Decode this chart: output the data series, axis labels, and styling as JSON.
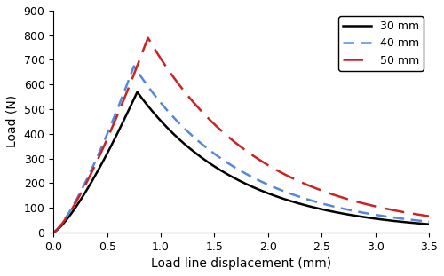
{
  "title": "",
  "xlabel": "Load line displacement (mm)",
  "ylabel": "Load (N)",
  "xlim": [
    0,
    3.5
  ],
  "ylim": [
    0,
    900
  ],
  "xticks": [
    0,
    0.5,
    1.0,
    1.5,
    2.0,
    2.5,
    3.0,
    3.5
  ],
  "yticks": [
    0,
    100,
    200,
    300,
    400,
    500,
    600,
    700,
    800,
    900
  ],
  "series": [
    {
      "label": "30 mm",
      "color": "#000000",
      "linestyle": "solid",
      "linewidth": 1.8,
      "dashes": null,
      "peak_x": 0.78,
      "peak_y": 570,
      "rise_power": 1.3,
      "decay_k": 1.05
    },
    {
      "label": "40 mm",
      "color": "#5588dd",
      "linestyle": "dashed",
      "linewidth": 1.8,
      "dashes": [
        5,
        3
      ],
      "peak_x": 0.75,
      "peak_y": 675,
      "rise_power": 1.3,
      "decay_k": 1.0
    },
    {
      "label": "50 mm",
      "color": "#cc2222",
      "linestyle": "dashed",
      "linewidth": 1.8,
      "dashes": [
        9,
        4
      ],
      "peak_x": 0.88,
      "peak_y": 790,
      "rise_power": 1.3,
      "decay_k": 0.95
    }
  ],
  "legend_loc": "upper right",
  "legend_fontsize": 9,
  "figure_bg": "#ffffff",
  "axes_bg": "#ffffff",
  "tick_fontsize": 9,
  "label_fontsize": 10
}
